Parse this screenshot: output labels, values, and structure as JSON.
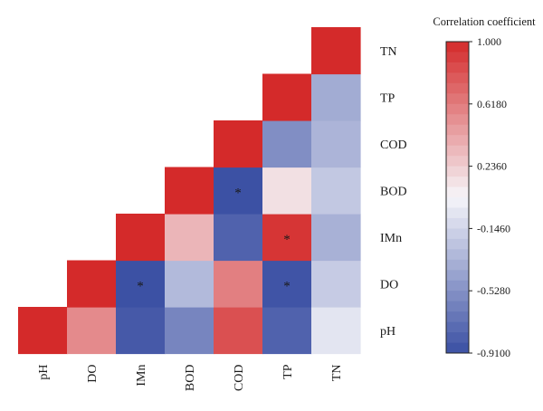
{
  "chart_data": {
    "type": "heatmap",
    "variables": [
      "pH",
      "DO",
      "IMn",
      "BOD",
      "COD",
      "TP",
      "TN"
    ],
    "x_labels": [
      "pH",
      "DO",
      "IMn",
      "BOD",
      "COD",
      "TP",
      "TN"
    ],
    "y_labels": [
      "TN",
      "TP",
      "COD",
      "BOD",
      "IMn",
      "DO",
      "pH"
    ],
    "layout": "upper-triangle (diagonal = 1)",
    "cells": [
      {
        "x": "pH",
        "y": "pH",
        "value": 1.0,
        "significant": false
      },
      {
        "x": "DO",
        "y": "pH",
        "value": 0.55,
        "significant": false
      },
      {
        "x": "DO",
        "y": "DO",
        "value": 1.0,
        "significant": false
      },
      {
        "x": "IMn",
        "y": "pH",
        "value": -0.85,
        "significant": false
      },
      {
        "x": "IMn",
        "y": "DO",
        "value": -0.9,
        "significant": true
      },
      {
        "x": "IMn",
        "y": "IMn",
        "value": 1.0,
        "significant": false
      },
      {
        "x": "BOD",
        "y": "pH",
        "value": -0.6,
        "significant": false
      },
      {
        "x": "BOD",
        "y": "DO",
        "value": -0.3,
        "significant": false
      },
      {
        "x": "BOD",
        "y": "IMn",
        "value": 0.35,
        "significant": false
      },
      {
        "x": "BOD",
        "y": "BOD",
        "value": 1.0,
        "significant": false
      },
      {
        "x": "COD",
        "y": "pH",
        "value": 0.82,
        "significant": false
      },
      {
        "x": "COD",
        "y": "DO",
        "value": 0.6,
        "significant": false
      },
      {
        "x": "COD",
        "y": "IMn",
        "value": -0.8,
        "significant": false
      },
      {
        "x": "COD",
        "y": "BOD",
        "value": -0.9,
        "significant": true
      },
      {
        "x": "COD",
        "y": "COD",
        "value": 1.0,
        "significant": false
      },
      {
        "x": "TP",
        "y": "pH",
        "value": -0.8,
        "significant": false
      },
      {
        "x": "TP",
        "y": "DO",
        "value": -0.88,
        "significant": true
      },
      {
        "x": "TP",
        "y": "IMn",
        "value": 0.95,
        "significant": true
      },
      {
        "x": "TP",
        "y": "BOD",
        "value": 0.15,
        "significant": false
      },
      {
        "x": "TP",
        "y": "COD",
        "value": -0.55,
        "significant": false
      },
      {
        "x": "TP",
        "y": "TP",
        "value": 1.0,
        "significant": false
      },
      {
        "x": "TN",
        "y": "pH",
        "value": -0.05,
        "significant": false
      },
      {
        "x": "TN",
        "y": "DO",
        "value": -0.2,
        "significant": false
      },
      {
        "x": "TN",
        "y": "IMn",
        "value": -0.35,
        "significant": false
      },
      {
        "x": "TN",
        "y": "BOD",
        "value": -0.22,
        "significant": false
      },
      {
        "x": "TN",
        "y": "COD",
        "value": -0.33,
        "significant": false
      },
      {
        "x": "TN",
        "y": "TP",
        "value": -0.38,
        "significant": false
      },
      {
        "x": "TN",
        "y": "TN",
        "value": 1.0,
        "significant": false
      }
    ],
    "significance_marker": "*",
    "colorbar": {
      "title": "Correlation coefficient",
      "min": -0.91,
      "max": 1.0,
      "ticks": [
        1.0,
        0.618,
        0.236,
        -0.146,
        -0.528,
        -0.91
      ],
      "tick_labels": [
        "1.000",
        "0.6180",
        "0.2360",
        "-0.1460",
        "-0.5280",
        "-0.9100"
      ],
      "steps": 30
    },
    "colors": {
      "high": "#d42a2a",
      "mid": "#f6f6fa",
      "low": "#3a4fa3"
    },
    "grid": false
  }
}
